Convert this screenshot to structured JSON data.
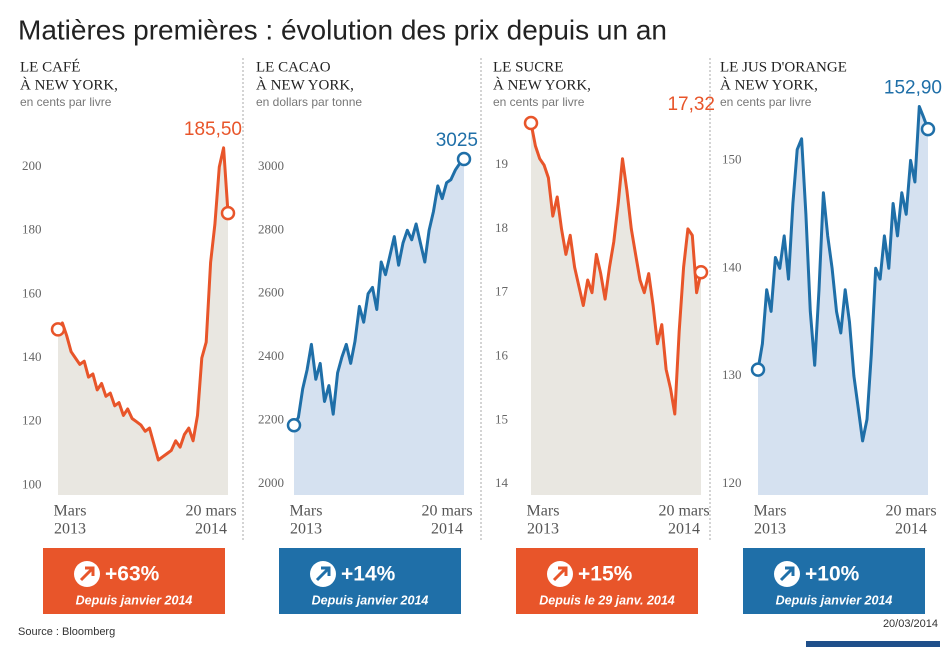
{
  "title": "Matières premières : évolution des prix depuis un an",
  "source": "Source : Bloomberg",
  "date": "20/03/2014",
  "chart_data": [
    {
      "type": "line",
      "title": [
        "LE CAFÉ",
        "À NEW YORK,"
      ],
      "subtitle": "en cents par livre",
      "values": [
        149,
        151,
        147,
        142,
        140,
        138,
        139,
        134,
        135,
        130,
        132,
        128,
        129,
        125,
        126,
        122,
        124,
        121,
        120,
        119,
        117,
        118,
        113,
        108,
        109,
        110,
        111,
        114,
        112,
        116,
        118,
        114,
        122,
        140,
        145,
        170,
        182,
        200,
        206,
        185.5
      ],
      "value_labels": [
        null,
        null,
        null,
        null,
        null,
        null,
        null,
        null,
        null,
        null,
        null,
        null,
        null,
        null,
        null,
        null,
        null,
        null,
        null,
        null,
        null,
        null,
        null,
        null,
        null,
        null,
        null,
        null,
        null,
        null,
        null,
        null,
        null,
        null,
        null,
        null,
        null,
        null,
        null,
        "185,50"
      ],
      "color": "#e8552a",
      "area_color": "#e9e7e1",
      "ylim": [
        97,
        221
      ],
      "yticks": [
        100,
        120,
        140,
        160,
        180,
        200
      ],
      "x_labels": [
        [
          "Mars",
          "2013"
        ],
        [
          "20 mars",
          "2014"
        ]
      ],
      "badge": "+63%",
      "badge_note": "Depuis janvier 2014",
      "badge_color": "#e8552a"
    },
    {
      "type": "line",
      "title": [
        "LE CACAO",
        "À NEW YORK,"
      ],
      "subtitle": "en dollars par tonne",
      "values": [
        2185,
        2210,
        2300,
        2360,
        2440,
        2330,
        2380,
        2260,
        2310,
        2220,
        2350,
        2400,
        2440,
        2380,
        2450,
        2560,
        2510,
        2600,
        2620,
        2550,
        2700,
        2660,
        2720,
        2780,
        2690,
        2760,
        2800,
        2770,
        2820,
        2760,
        2700,
        2800,
        2860,
        2940,
        2900,
        2950,
        2960,
        2990,
        3010,
        3025
      ],
      "value_labels": [
        null,
        null,
        null,
        null,
        null,
        null,
        null,
        null,
        null,
        null,
        null,
        null,
        null,
        null,
        null,
        null,
        null,
        null,
        null,
        null,
        null,
        null,
        null,
        null,
        null,
        null,
        null,
        null,
        null,
        null,
        null,
        null,
        null,
        null,
        null,
        null,
        null,
        null,
        null,
        "3025"
      ],
      "color": "#1f6fa8",
      "area_color": "#d5e1f0",
      "ylim": [
        1965,
        3211
      ],
      "yticks": [
        2000,
        2200,
        2400,
        2600,
        2800,
        3000
      ],
      "x_labels": [
        [
          "Mars",
          "2013"
        ],
        [
          "20 mars",
          "2014"
        ]
      ],
      "badge": "+14%",
      "badge_note": "Depuis janvier 2014",
      "badge_color": "#1f6fa8"
    },
    {
      "type": "line",
      "title": [
        "LE SUCRE",
        "À NEW YORK,"
      ],
      "subtitle": "en cents par livre",
      "values": [
        19.66,
        19.3,
        19.1,
        19.0,
        18.8,
        18.2,
        18.5,
        18.0,
        17.6,
        17.9,
        17.4,
        17.1,
        16.8,
        17.2,
        17.0,
        17.6,
        17.3,
        16.9,
        17.4,
        17.8,
        18.4,
        19.1,
        18.6,
        18.0,
        17.6,
        17.2,
        17.0,
        17.3,
        16.8,
        16.2,
        16.5,
        15.8,
        15.5,
        15.1,
        16.4,
        17.4,
        18.0,
        17.9,
        17.0,
        17.32
      ],
      "value_labels": [
        null,
        null,
        null,
        null,
        null,
        null,
        null,
        null,
        null,
        null,
        null,
        null,
        null,
        null,
        null,
        null,
        null,
        null,
        null,
        null,
        null,
        null,
        null,
        null,
        null,
        null,
        null,
        null,
        null,
        null,
        null,
        null,
        null,
        null,
        null,
        null,
        null,
        null,
        null,
        "17,32"
      ],
      "color": "#e8552a",
      "area_color": "#e9e7e1",
      "ylim": [
        13.83,
        20.02
      ],
      "yticks": [
        14,
        15,
        16,
        17,
        18,
        19
      ],
      "x_labels": [
        [
          "Mars",
          "2013"
        ],
        [
          "20 mars",
          "2014"
        ]
      ],
      "badge": "+15%",
      "badge_note": "Depuis le 29 janv. 2014",
      "badge_color": "#e8552a"
    },
    {
      "type": "line",
      "title": [
        "LE JUS D'ORANGE",
        "À NEW YORK,"
      ],
      "subtitle": "en cents par livre",
      "values": [
        130.6,
        133,
        138,
        136,
        141,
        140,
        143,
        139,
        146,
        151,
        152,
        145,
        136,
        131,
        138,
        147,
        143,
        140,
        136,
        134,
        138,
        135,
        130,
        127,
        124,
        126,
        132,
        140,
        139,
        143,
        140,
        146,
        143,
        147,
        145,
        150,
        148,
        155,
        154,
        152.9
      ],
      "value_labels": [
        null,
        null,
        null,
        null,
        null,
        null,
        null,
        null,
        null,
        null,
        null,
        null,
        null,
        null,
        null,
        null,
        null,
        null,
        null,
        null,
        null,
        null,
        null,
        null,
        null,
        null,
        null,
        null,
        null,
        null,
        null,
        null,
        null,
        null,
        null,
        null,
        null,
        null,
        null,
        "152,90"
      ],
      "color": "#1f6fa8",
      "area_color": "#d5e1f0",
      "ylim": [
        118.98,
        155.6
      ],
      "yticks": [
        120,
        130,
        140,
        150
      ],
      "x_labels": [
        [
          "Mars",
          "2013"
        ],
        [
          "20 mars",
          "2014"
        ]
      ],
      "badge": "+10%",
      "badge_note": "Depuis janvier 2014",
      "badge_color": "#1f6fa8"
    }
  ]
}
